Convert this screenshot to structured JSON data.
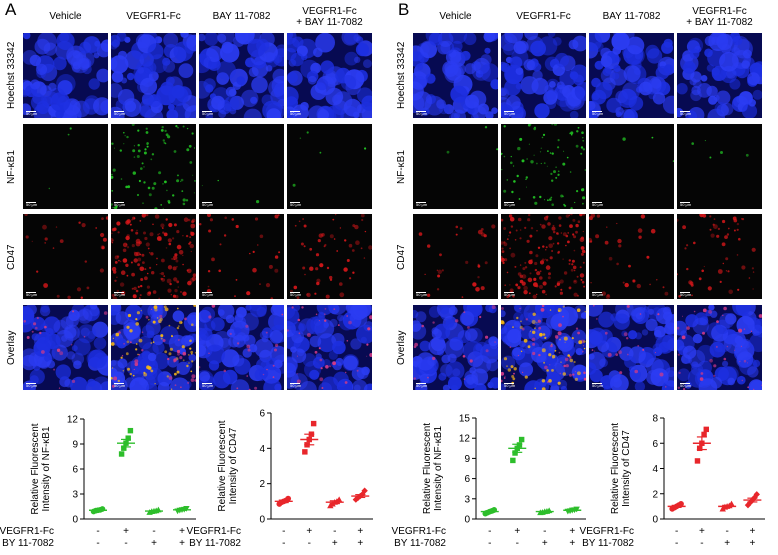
{
  "figure": {
    "panels": [
      {
        "letter": "A",
        "columns": [
          "Vehicle",
          "VEGFR1-Fc",
          "BAY 11-7082",
          "VEGFR1-Fc\n+ BAY 11-7082"
        ],
        "rows": [
          "Hoechst 33342",
          "NF-κB1",
          "CD47",
          "Overlay"
        ],
        "scale_bar_label": "50 μm"
      },
      {
        "letter": "B",
        "columns": [
          "Vehicle",
          "VEGFR1-Fc",
          "BAY 11-7082",
          "VEGFR1-Fc\n+ BAY 11-7082"
        ],
        "rows": [
          "Hoechst 33342",
          "NF-κB1",
          "CD47",
          "Overlay"
        ],
        "scale_bar_label": "50 μm"
      }
    ],
    "colors": {
      "hoechst": "#1a2bd6",
      "nfkb": "#22c424",
      "cd47": "#d6171a",
      "nfkb_series": "#2dbe2b",
      "cd47_series": "#e8262b"
    }
  },
  "chart_data": [
    {
      "type": "scatter",
      "ylabel": "Relative Fluorescent\nIntensity of NF-κB1",
      "ylim": [
        0,
        12
      ],
      "yticks": [
        0,
        3,
        6,
        9,
        12
      ],
      "factor_rows": [
        {
          "label": "VEGFR1-Fc",
          "marks": [
            "-",
            "+",
            "-",
            "+"
          ]
        },
        {
          "label": "BY 11-7082",
          "marks": [
            "-",
            "-",
            "+",
            "+"
          ]
        }
      ],
      "color_key": "nfkb_series",
      "marker": "mixed",
      "groups": [
        {
          "mean": 1.05,
          "sem": 0.08,
          "points": [
            0.9,
            1.0,
            1.05,
            1.1,
            1.2
          ],
          "marker": "circle"
        },
        {
          "mean": 9.1,
          "sem": 0.45,
          "points": [
            7.8,
            8.5,
            9.1,
            9.7,
            10.6
          ],
          "marker": "square"
        },
        {
          "mean": 0.95,
          "sem": 0.06,
          "points": [
            0.8,
            0.9,
            0.95,
            1.0,
            1.1
          ],
          "marker": "triangle"
        },
        {
          "mean": 1.1,
          "sem": 0.06,
          "points": [
            0.95,
            1.05,
            1.1,
            1.15,
            1.25
          ],
          "marker": "inverted-triangle"
        }
      ]
    },
    {
      "type": "scatter",
      "ylabel": "Relative Fluorescent\nIntensity of CD47",
      "ylim": [
        0,
        6
      ],
      "yticks": [
        0,
        2,
        4,
        6
      ],
      "factor_rows": [
        {
          "label": "VEGFR1-Fc",
          "marks": [
            "-",
            "+",
            "-",
            "+"
          ]
        },
        {
          "label": "BY 11-7082",
          "marks": [
            "-",
            "-",
            "+",
            "+"
          ]
        }
      ],
      "color_key": "cd47_series",
      "marker": "mixed",
      "groups": [
        {
          "mean": 1.0,
          "sem": 0.07,
          "points": [
            0.85,
            0.95,
            1.0,
            1.05,
            1.15
          ],
          "marker": "circle"
        },
        {
          "mean": 4.5,
          "sem": 0.3,
          "points": [
            3.8,
            4.2,
            4.5,
            4.8,
            5.4
          ],
          "marker": "square"
        },
        {
          "mean": 0.95,
          "sem": 0.08,
          "points": [
            0.75,
            0.85,
            0.95,
            1.0,
            1.1
          ],
          "marker": "triangle"
        },
        {
          "mean": 1.3,
          "sem": 0.08,
          "points": [
            1.1,
            1.2,
            1.3,
            1.4,
            1.6
          ],
          "marker": "diamond"
        }
      ]
    },
    {
      "type": "scatter",
      "ylabel": "Relative Fluorescent\nIntensity of NF-κB1",
      "ylim": [
        0,
        15
      ],
      "yticks": [
        0,
        3,
        6,
        9,
        12,
        15
      ],
      "factor_rows": [
        {
          "label": "VEGFR1-Fc",
          "marks": [
            "-",
            "+",
            "-",
            "+"
          ]
        },
        {
          "label": "BY 11-7082",
          "marks": [
            "-",
            "-",
            "+",
            "+"
          ]
        }
      ],
      "color_key": "nfkb_series",
      "marker": "mixed",
      "groups": [
        {
          "mean": 1.1,
          "sem": 0.1,
          "points": [
            0.8,
            0.95,
            1.1,
            1.2,
            1.35
          ],
          "marker": "circle"
        },
        {
          "mean": 10.5,
          "sem": 0.6,
          "points": [
            8.7,
            9.8,
            10.5,
            11.0,
            11.8
          ],
          "marker": "square"
        },
        {
          "mean": 1.1,
          "sem": 0.07,
          "points": [
            0.95,
            1.0,
            1.1,
            1.15,
            1.25
          ],
          "marker": "triangle"
        },
        {
          "mean": 1.3,
          "sem": 0.07,
          "points": [
            1.15,
            1.2,
            1.3,
            1.35,
            1.45
          ],
          "marker": "inverted-triangle"
        }
      ]
    },
    {
      "type": "scatter",
      "ylabel": "Relative Fluorescent\nIntensity of CD47",
      "ylim": [
        0,
        8
      ],
      "yticks": [
        0,
        2,
        4,
        6,
        8
      ],
      "factor_rows": [
        {
          "label": "VEGFR1-Fc",
          "marks": [
            "-",
            "+",
            "-",
            "+"
          ]
        },
        {
          "label": "BY 11-7082",
          "marks": [
            "-",
            "-",
            "+",
            "+"
          ]
        }
      ],
      "color_key": "cd47_series",
      "marker": "mixed",
      "groups": [
        {
          "mean": 1.0,
          "sem": 0.08,
          "points": [
            0.8,
            0.9,
            1.0,
            1.1,
            1.2
          ],
          "marker": "circle"
        },
        {
          "mean": 6.0,
          "sem": 0.5,
          "points": [
            4.6,
            5.6,
            6.0,
            6.7,
            7.1
          ],
          "marker": "square"
        },
        {
          "mean": 1.0,
          "sem": 0.08,
          "points": [
            0.8,
            0.95,
            1.0,
            1.05,
            1.2
          ],
          "marker": "triangle"
        },
        {
          "mean": 1.5,
          "sem": 0.15,
          "points": [
            1.1,
            1.3,
            1.5,
            1.7,
            1.95
          ],
          "marker": "diamond"
        }
      ]
    }
  ]
}
